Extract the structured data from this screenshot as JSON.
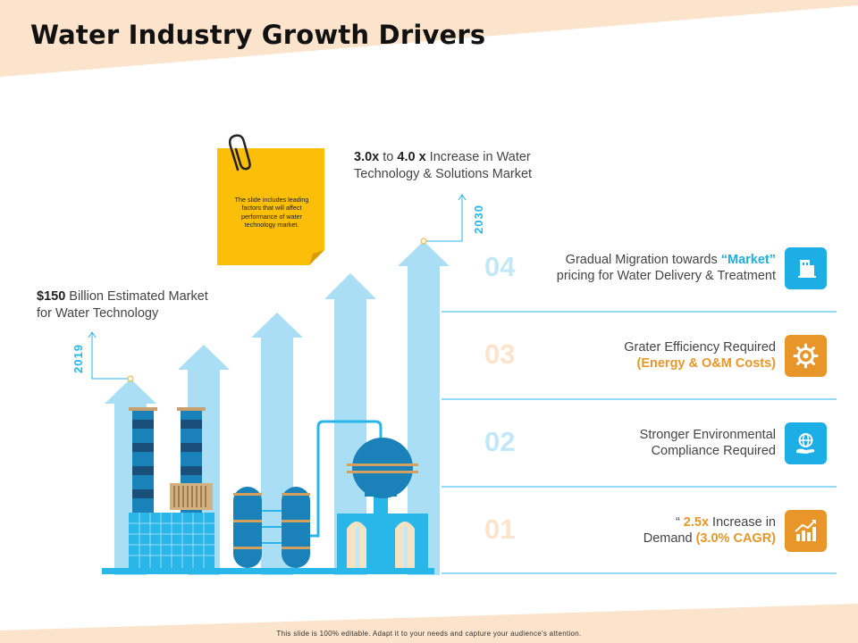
{
  "title": "Water Industry Growth Drivers",
  "sticky_note": "The slide includes leading factors that will affect performance of water technology market.",
  "annotation_2030": {
    "bold_start": "3.0x",
    "middle": " to ",
    "bold_end": "4.0 x",
    "rest_line1": " Increase in Water",
    "line2": "Technology & Solutions Market"
  },
  "annotation_2019": {
    "bold": "$150",
    "rest_line1": " Billion Estimated Market",
    "line2": "for Water Technology"
  },
  "year_2019": "2019",
  "year_2030": "2030",
  "drivers": [
    {
      "number": "04",
      "line1_pre": "Gradual Migration towards ",
      "line1_hl": "“Market”",
      "line2": "pricing for Water Delivery & Treatment",
      "icon": "building-icon",
      "color": "#1eaee6"
    },
    {
      "number": "03",
      "line1": "Grater Efficiency Required",
      "line2_hl": "(Energy & O&M Costs)",
      "icon": "gear-icon",
      "color": "#e8962a"
    },
    {
      "number": "02",
      "line1": "Stronger Environmental",
      "line2": "Compliance Required",
      "icon": "globe-hand-icon",
      "color": "#1eaee6"
    },
    {
      "number": "01",
      "line1_pre": "“ ",
      "line1_hl": "2.5x",
      "line1_post": " Increase in",
      "line2_pre": "Demand ",
      "line2_hl": "(3.0% CAGR)",
      "icon": "growth-chart-icon",
      "color": "#e8962a"
    }
  ],
  "colors": {
    "blue": "#1eaee6",
    "orange": "#e8962a",
    "light_blue": "#a9def4",
    "peach": "#fbe3cc",
    "note_yellow": "#fbbf0a"
  },
  "footer": "This slide is 100% editable. Adapt it to your needs and capture your audience's attention."
}
